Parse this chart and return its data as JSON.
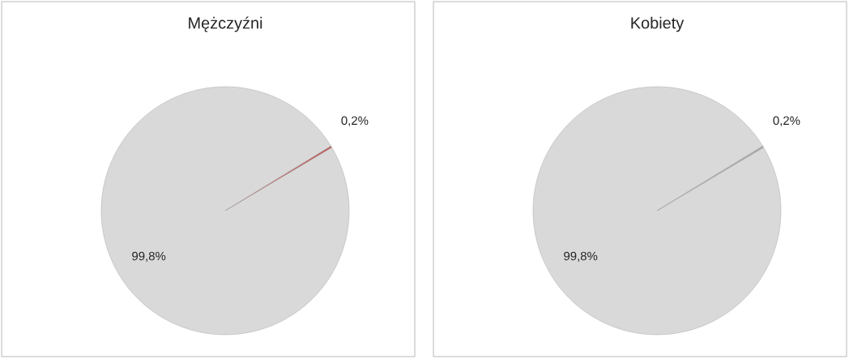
{
  "chart_data": [
    {
      "type": "pie",
      "title": "Mężczyźni",
      "categories": [
        null,
        null
      ],
      "values": [
        99.8,
        0.2
      ],
      "colors": [
        "#d9d9d9",
        "#c0504d"
      ],
      "value_labels": [
        "99,8%",
        "0,2%"
      ]
    },
    {
      "type": "pie",
      "title": "Kobiety",
      "categories": [
        null,
        null
      ],
      "values": [
        99.8,
        0.2
      ],
      "colors": [
        "#d9d9d9",
        "#a6a6a6"
      ],
      "value_labels": [
        "99,8%",
        "0,2%"
      ]
    }
  ]
}
